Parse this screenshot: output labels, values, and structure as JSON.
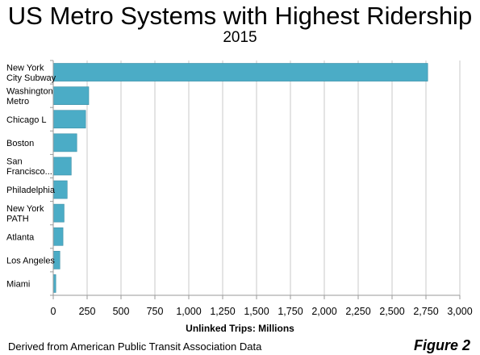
{
  "chart_data": {
    "type": "bar",
    "orientation": "horizontal",
    "title": "US Metro Systems with Highest Ridership",
    "subtitle": "2015",
    "xlabel": "Unlinked Trips: Millions",
    "ylabel": "",
    "xlim": [
      0,
      3000
    ],
    "x_ticks": [
      "0",
      "250",
      "500",
      "750",
      "1,000",
      "1,250",
      "1,500",
      "1,750",
      "2,000",
      "2,250",
      "2,500",
      "2,750",
      "3,000"
    ],
    "x_tick_values": [
      0,
      250,
      500,
      750,
      1000,
      1250,
      1500,
      1750,
      2000,
      2250,
      2500,
      2750,
      3000
    ],
    "grid": "vertical",
    "categories": [
      [
        "New York",
        "City Subway"
      ],
      [
        "Washington",
        "Metro"
      ],
      [
        "Chicago L"
      ],
      [
        "Boston"
      ],
      [
        "San",
        "Francisco..."
      ],
      [
        "Philadelphia"
      ],
      [
        "New York",
        "PATH"
      ],
      [
        "Atlanta"
      ],
      [
        "Los Angeles"
      ],
      [
        "Miami"
      ]
    ],
    "values": [
      2763,
      262,
      239,
      174,
      133,
      103,
      80,
      72,
      49,
      19
    ],
    "bar_color": "#4bacc6",
    "bar_edge_color": "#3e8fa6"
  },
  "footer": {
    "source": "Derived from American Public Transit Association Data",
    "figure_label": "Figure 2"
  }
}
